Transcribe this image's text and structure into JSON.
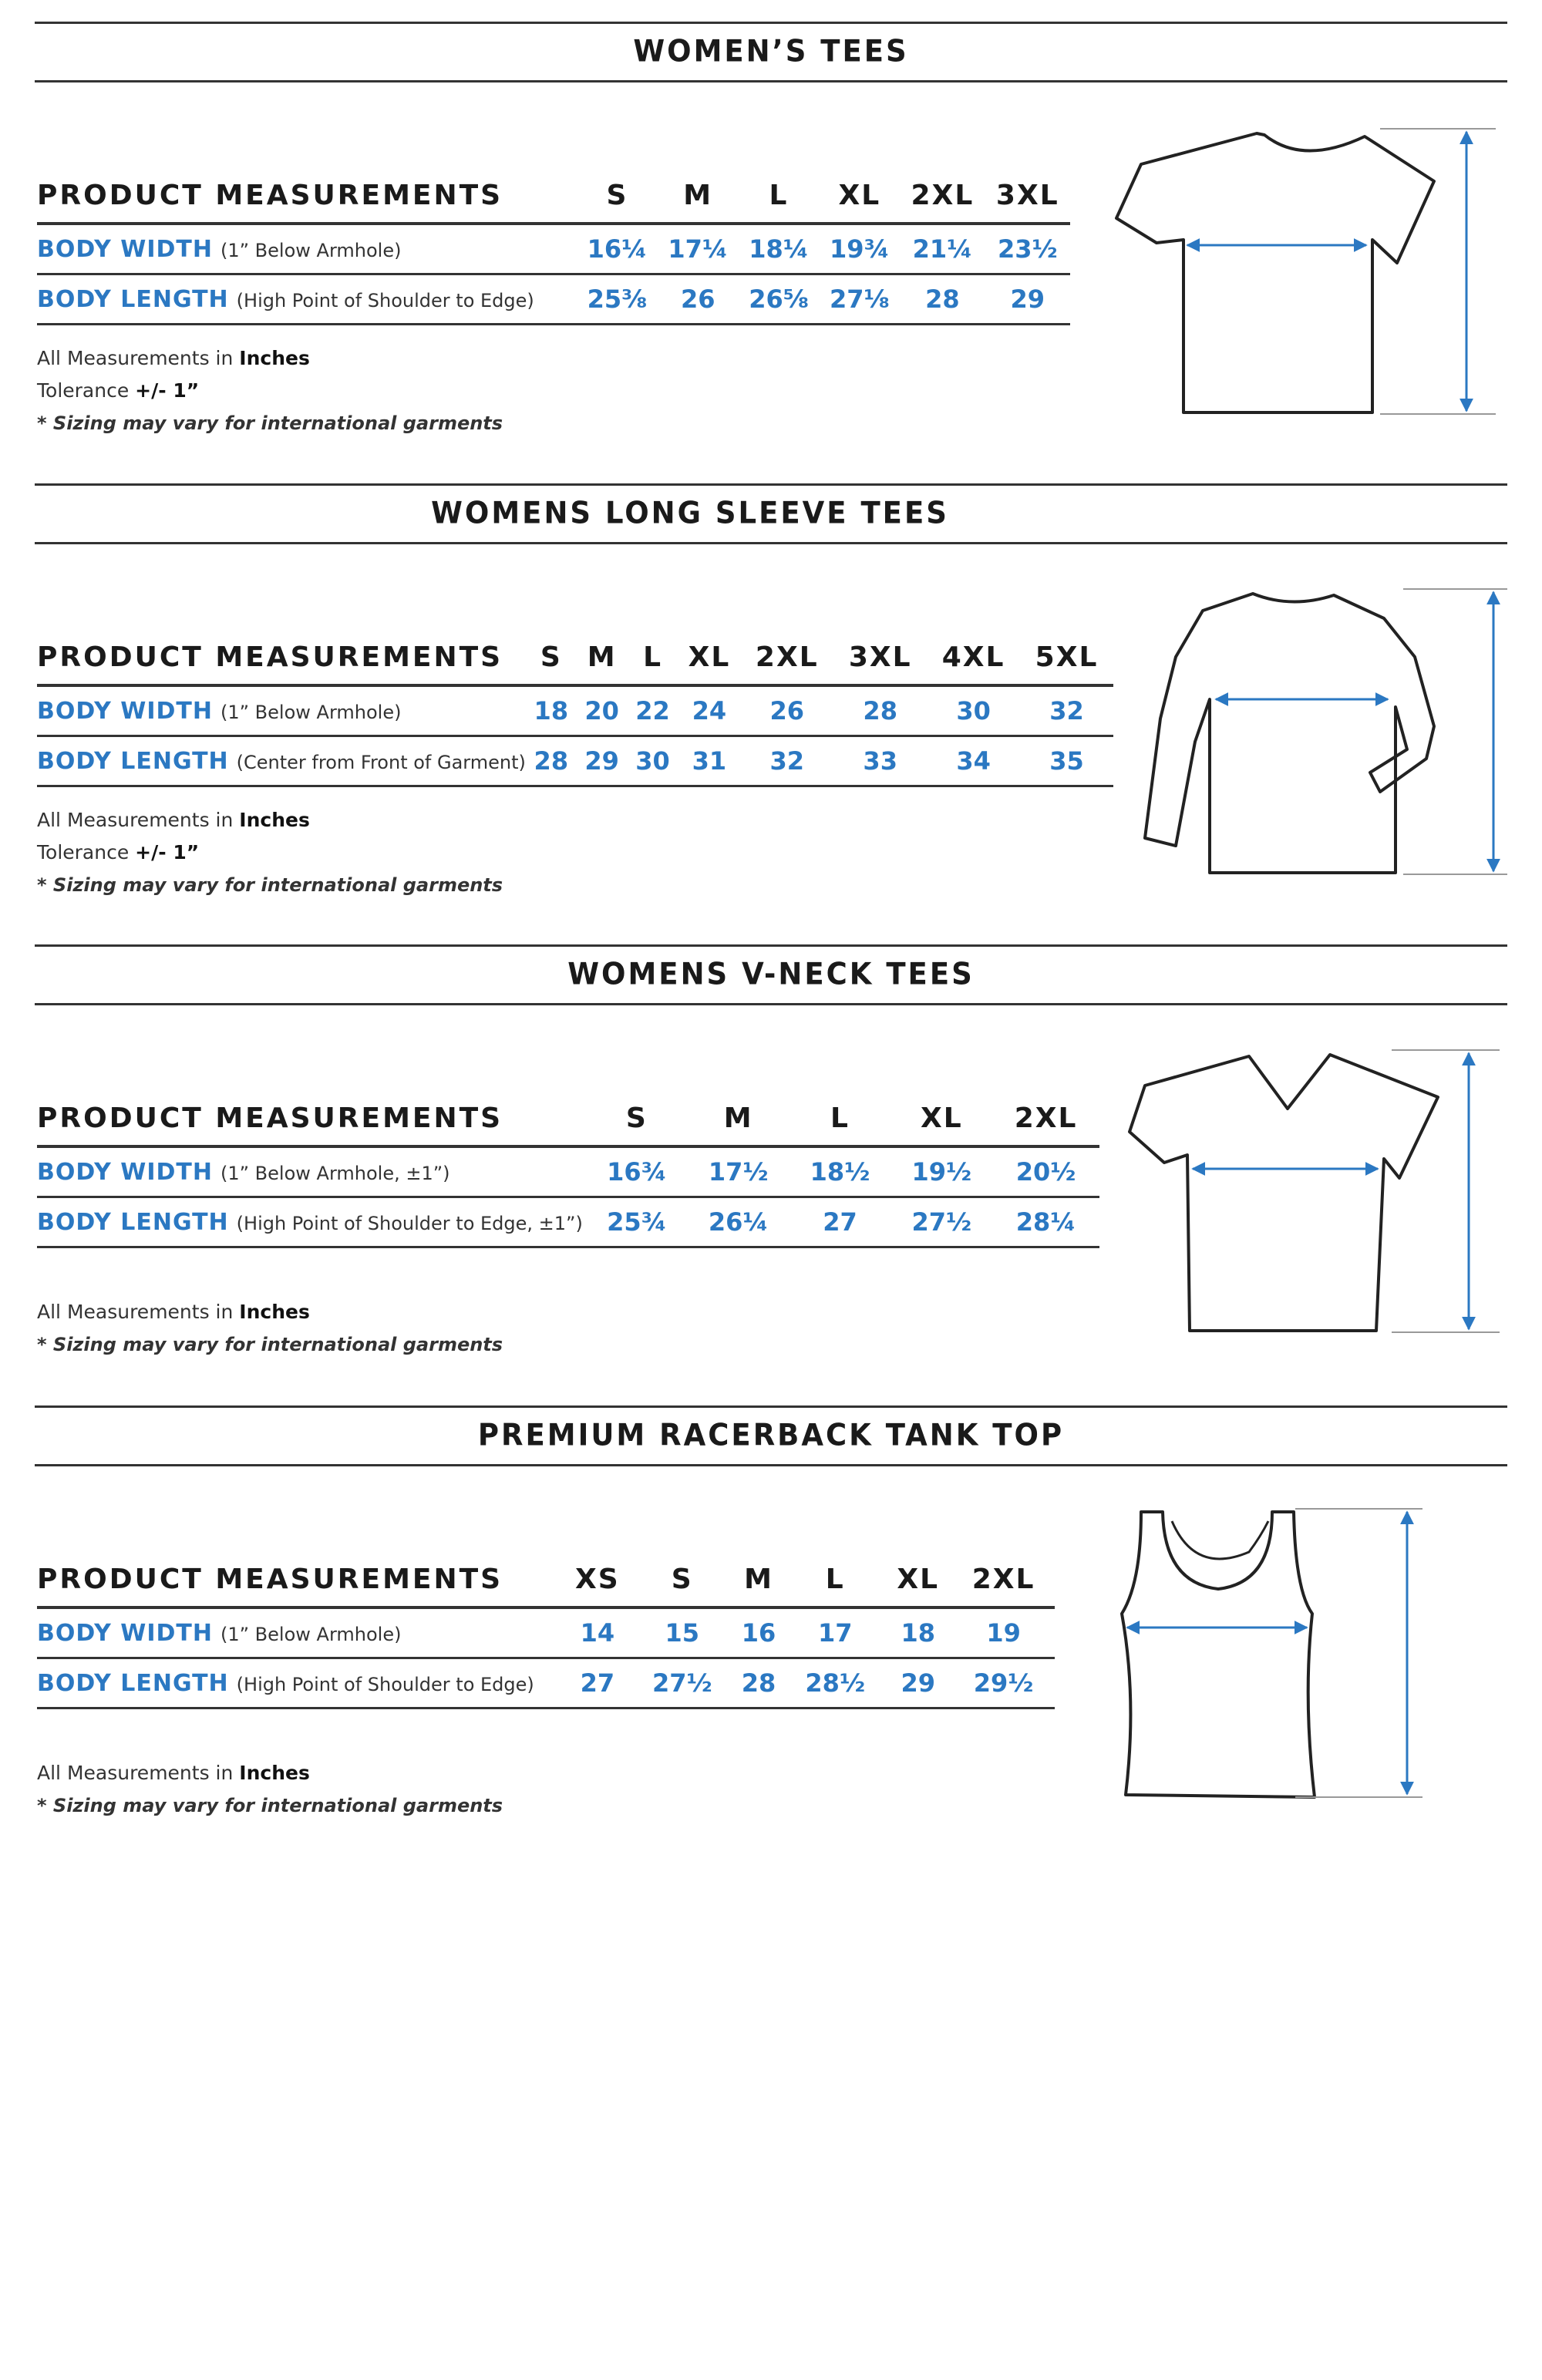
{
  "accent_color": "#2b78c2",
  "sections": [
    {
      "title": "WOMEN’S TEES",
      "header": "PRODUCT MEASUREMENTS",
      "sizes": [
        "S",
        "M",
        "L",
        "XL",
        "2XL",
        "3XL"
      ],
      "rows": [
        {
          "name": "BODY WIDTH",
          "note": "(1” Below Armhole)",
          "values": [
            "16¼",
            "17¼",
            "18¼",
            "19¾",
            "21¼",
            "23½"
          ]
        },
        {
          "name": "BODY LENGTH",
          "note": "(High Point of Shoulder to Edge)",
          "values": [
            "25⅜",
            "26",
            "26⅝",
            "27⅛",
            "28",
            "29"
          ]
        }
      ],
      "notes": {
        "units_prefix": "All Measurements in ",
        "units": "Inches",
        "tolerance_prefix": "Tolerance ",
        "tolerance": "+/- 1”",
        "disclaimer": "* Sizing may vary for international garments"
      },
      "illustration": "crew-neck-tee-icon"
    },
    {
      "title": "WOMENS LONG SLEEVE TEES",
      "header": "PRODUCT MEASUREMENTS",
      "sizes": [
        "S",
        "M",
        "L",
        "XL",
        "2XL",
        "3XL",
        "4XL",
        "5XL"
      ],
      "rows": [
        {
          "name": "BODY WIDTH",
          "note": "(1” Below Armhole)",
          "values": [
            "18",
            "20",
            "22",
            "24",
            "26",
            "28",
            "30",
            "32"
          ]
        },
        {
          "name": "BODY LENGTH",
          "note": "(Center from Front of Garment)",
          "values": [
            "28",
            "29",
            "30",
            "31",
            "32",
            "33",
            "34",
            "35"
          ]
        }
      ],
      "notes": {
        "units_prefix": "All Measurements in ",
        "units": "Inches",
        "tolerance_prefix": "Tolerance ",
        "tolerance": "+/- 1”",
        "disclaimer": "* Sizing may vary for international garments"
      },
      "illustration": "long-sleeve-tee-icon"
    },
    {
      "title": "WOMENS V-NECK TEES",
      "header": "PRODUCT MEASUREMENTS",
      "sizes": [
        "S",
        "M",
        "L",
        "XL",
        "2XL"
      ],
      "rows": [
        {
          "name": "BODY WIDTH",
          "note": "(1” Below Armhole, ±1”)",
          "values": [
            "16¾",
            "17½",
            "18½",
            "19½",
            "20½"
          ]
        },
        {
          "name": "BODY LENGTH",
          "note": "(High Point of Shoulder to Edge, ±1”)",
          "values": [
            "25¾",
            "26¼",
            "27",
            "27½",
            "28¼"
          ]
        }
      ],
      "notes": {
        "units_prefix": "All Measurements in ",
        "units": "Inches",
        "disclaimer": "* Sizing may vary for international garments"
      },
      "illustration": "v-neck-tee-icon"
    },
    {
      "title": "PREMIUM RACERBACK TANK TOP",
      "header": "PRODUCT MEASUREMENTS",
      "sizes": [
        "XS",
        "S",
        "M",
        "L",
        "XL",
        "2XL"
      ],
      "rows": [
        {
          "name": "BODY WIDTH",
          "note": "(1” Below Armhole)",
          "values": [
            "14",
            "15",
            "16",
            "17",
            "18",
            "19"
          ]
        },
        {
          "name": "BODY LENGTH",
          "note": "(High Point of Shoulder to Edge)",
          "values": [
            "27",
            "27½",
            "28",
            "28½",
            "29",
            "29½"
          ]
        }
      ],
      "notes": {
        "units_prefix": "All Measurements in ",
        "units": "Inches",
        "disclaimer": "* Sizing may vary for international garments"
      },
      "illustration": "racerback-tank-icon"
    }
  ]
}
